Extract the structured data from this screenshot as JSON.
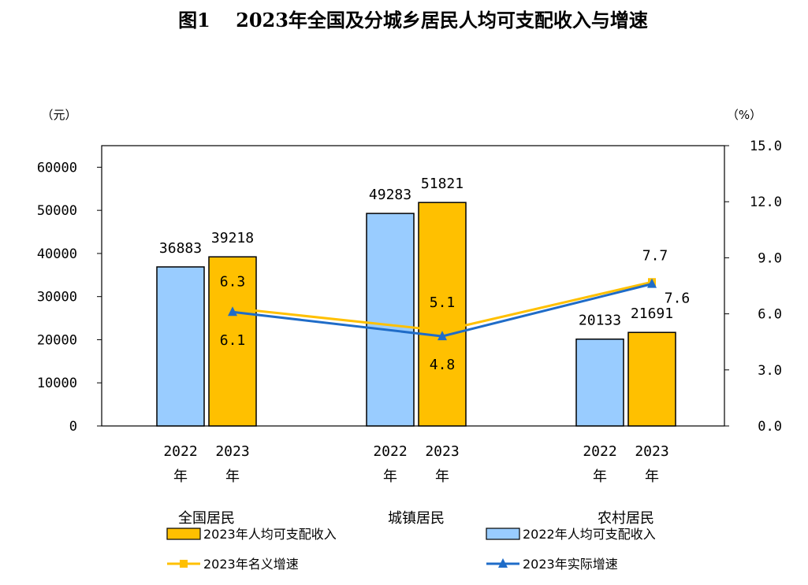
{
  "chart_data": {
    "type": "bar",
    "title": "图1　 2023年全国及分城乡居民人均可支配收入与增速",
    "left_unit": "（元）",
    "right_unit": "（%）",
    "groups": [
      "全国居民",
      "城镇居民",
      "农村居民"
    ],
    "x_sub_labels": [
      "2022",
      "2023"
    ],
    "x_sub_suffix": "年",
    "y_left": {
      "min": 0,
      "max": 65000,
      "ticks": [
        0,
        10000,
        20000,
        30000,
        40000,
        50000,
        60000
      ]
    },
    "y_right": {
      "min": 0,
      "max": 15,
      "ticks": [
        "0.0",
        "3.0",
        "6.0",
        "9.0",
        "12.0",
        "15.0"
      ]
    },
    "series": [
      {
        "name": "2022年人均可支配收入",
        "kind": "bar",
        "color": "#99CCFF",
        "values": [
          36883,
          49283,
          20133
        ]
      },
      {
        "name": "2023年人均可支配收入",
        "kind": "bar",
        "color": "#FFC000",
        "values": [
          39218,
          51821,
          21691
        ]
      },
      {
        "name": "2023年名义增速",
        "kind": "line",
        "axis": "right",
        "marker": "square",
        "color": "#FFC000",
        "values": [
          6.3,
          5.1,
          7.7
        ]
      },
      {
        "name": "2023年实际增速",
        "kind": "line",
        "axis": "right",
        "marker": "triangle",
        "color": "#1F6CC8",
        "values": [
          6.1,
          4.8,
          7.6
        ]
      }
    ],
    "grid": false,
    "legend_position": "bottom"
  }
}
